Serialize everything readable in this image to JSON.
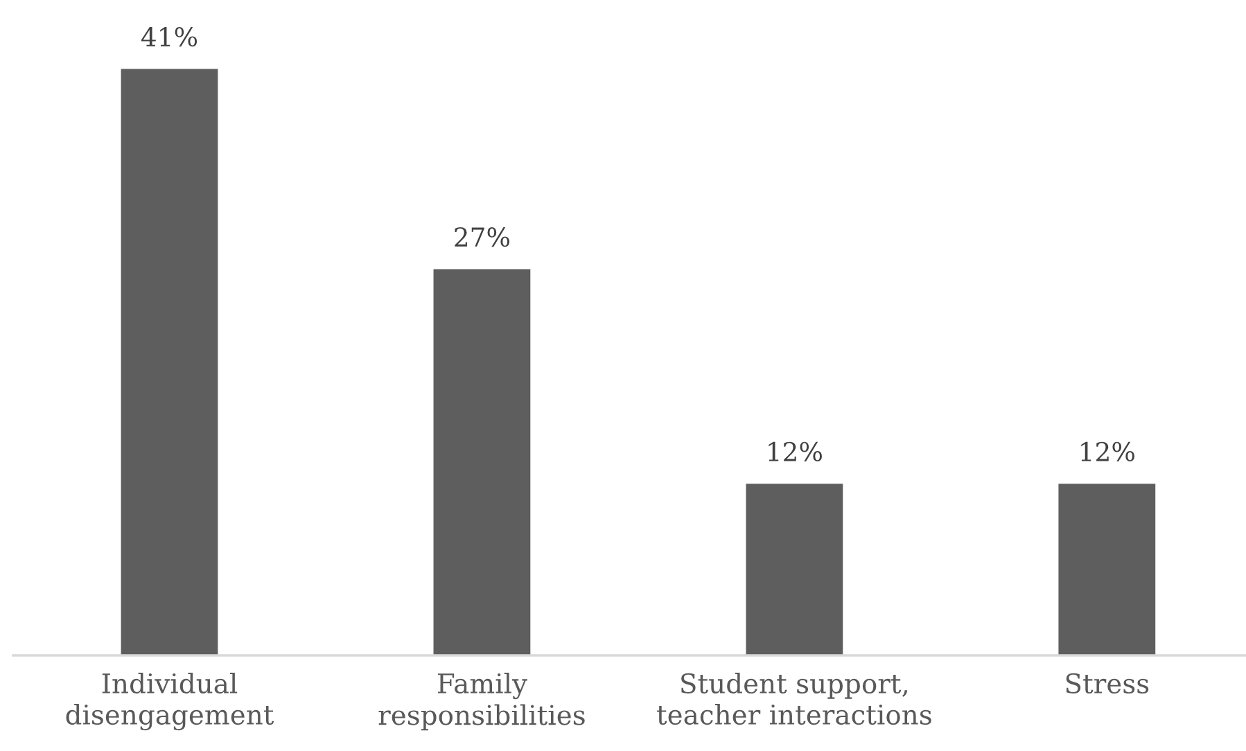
{
  "chart_data": {
    "type": "bar",
    "categories": [
      "Individual\ndisengagement",
      "Family\nresponsibilities",
      "Student support,\nteacher interactions",
      "Stress"
    ],
    "values": [
      41,
      27,
      12,
      12
    ],
    "value_labels": [
      "41%",
      "27%",
      "12%",
      "12%"
    ],
    "color": "#5e5e5e"
  }
}
